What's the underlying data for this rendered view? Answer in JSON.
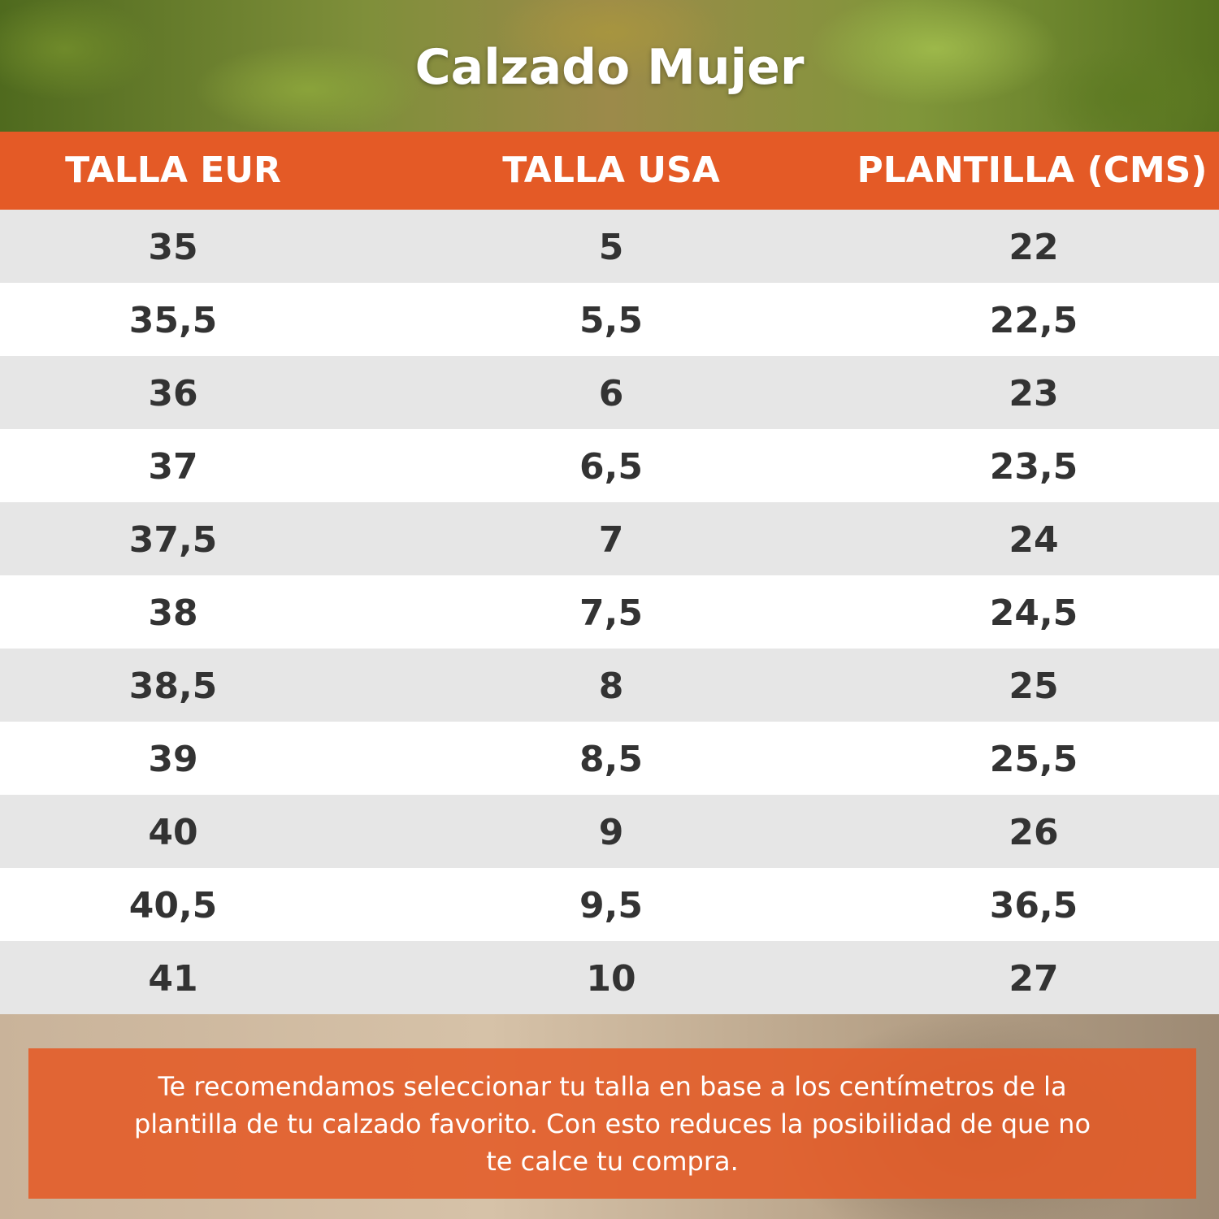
{
  "title": "Calzado Mujer",
  "colors": {
    "accent": "#e45a26",
    "row_alt": "#e6e6e6",
    "text": "#333333"
  },
  "table": {
    "headers": [
      "TALLA EUR",
      "TALLA USA",
      "PLANTILLA (CMS)"
    ],
    "rows": [
      [
        "35",
        "5",
        "22"
      ],
      [
        "35,5",
        "5,5",
        "22,5"
      ],
      [
        "36",
        "6",
        "23"
      ],
      [
        "37",
        "6,5",
        "23,5"
      ],
      [
        "37,5",
        "7",
        "24"
      ],
      [
        "38",
        "7,5",
        "24,5"
      ],
      [
        "38,5",
        "8",
        "25"
      ],
      [
        "39",
        "8,5",
        "25,5"
      ],
      [
        "40",
        "9",
        "26"
      ],
      [
        "40,5",
        "9,5",
        "36,5"
      ],
      [
        "41",
        "10",
        "27"
      ]
    ]
  },
  "note": "Te recomendamos seleccionar tu talla en base a los centímetros de la plantilla de tu calzado favorito. Con esto reduces la posibilidad de que no te calce tu compra."
}
